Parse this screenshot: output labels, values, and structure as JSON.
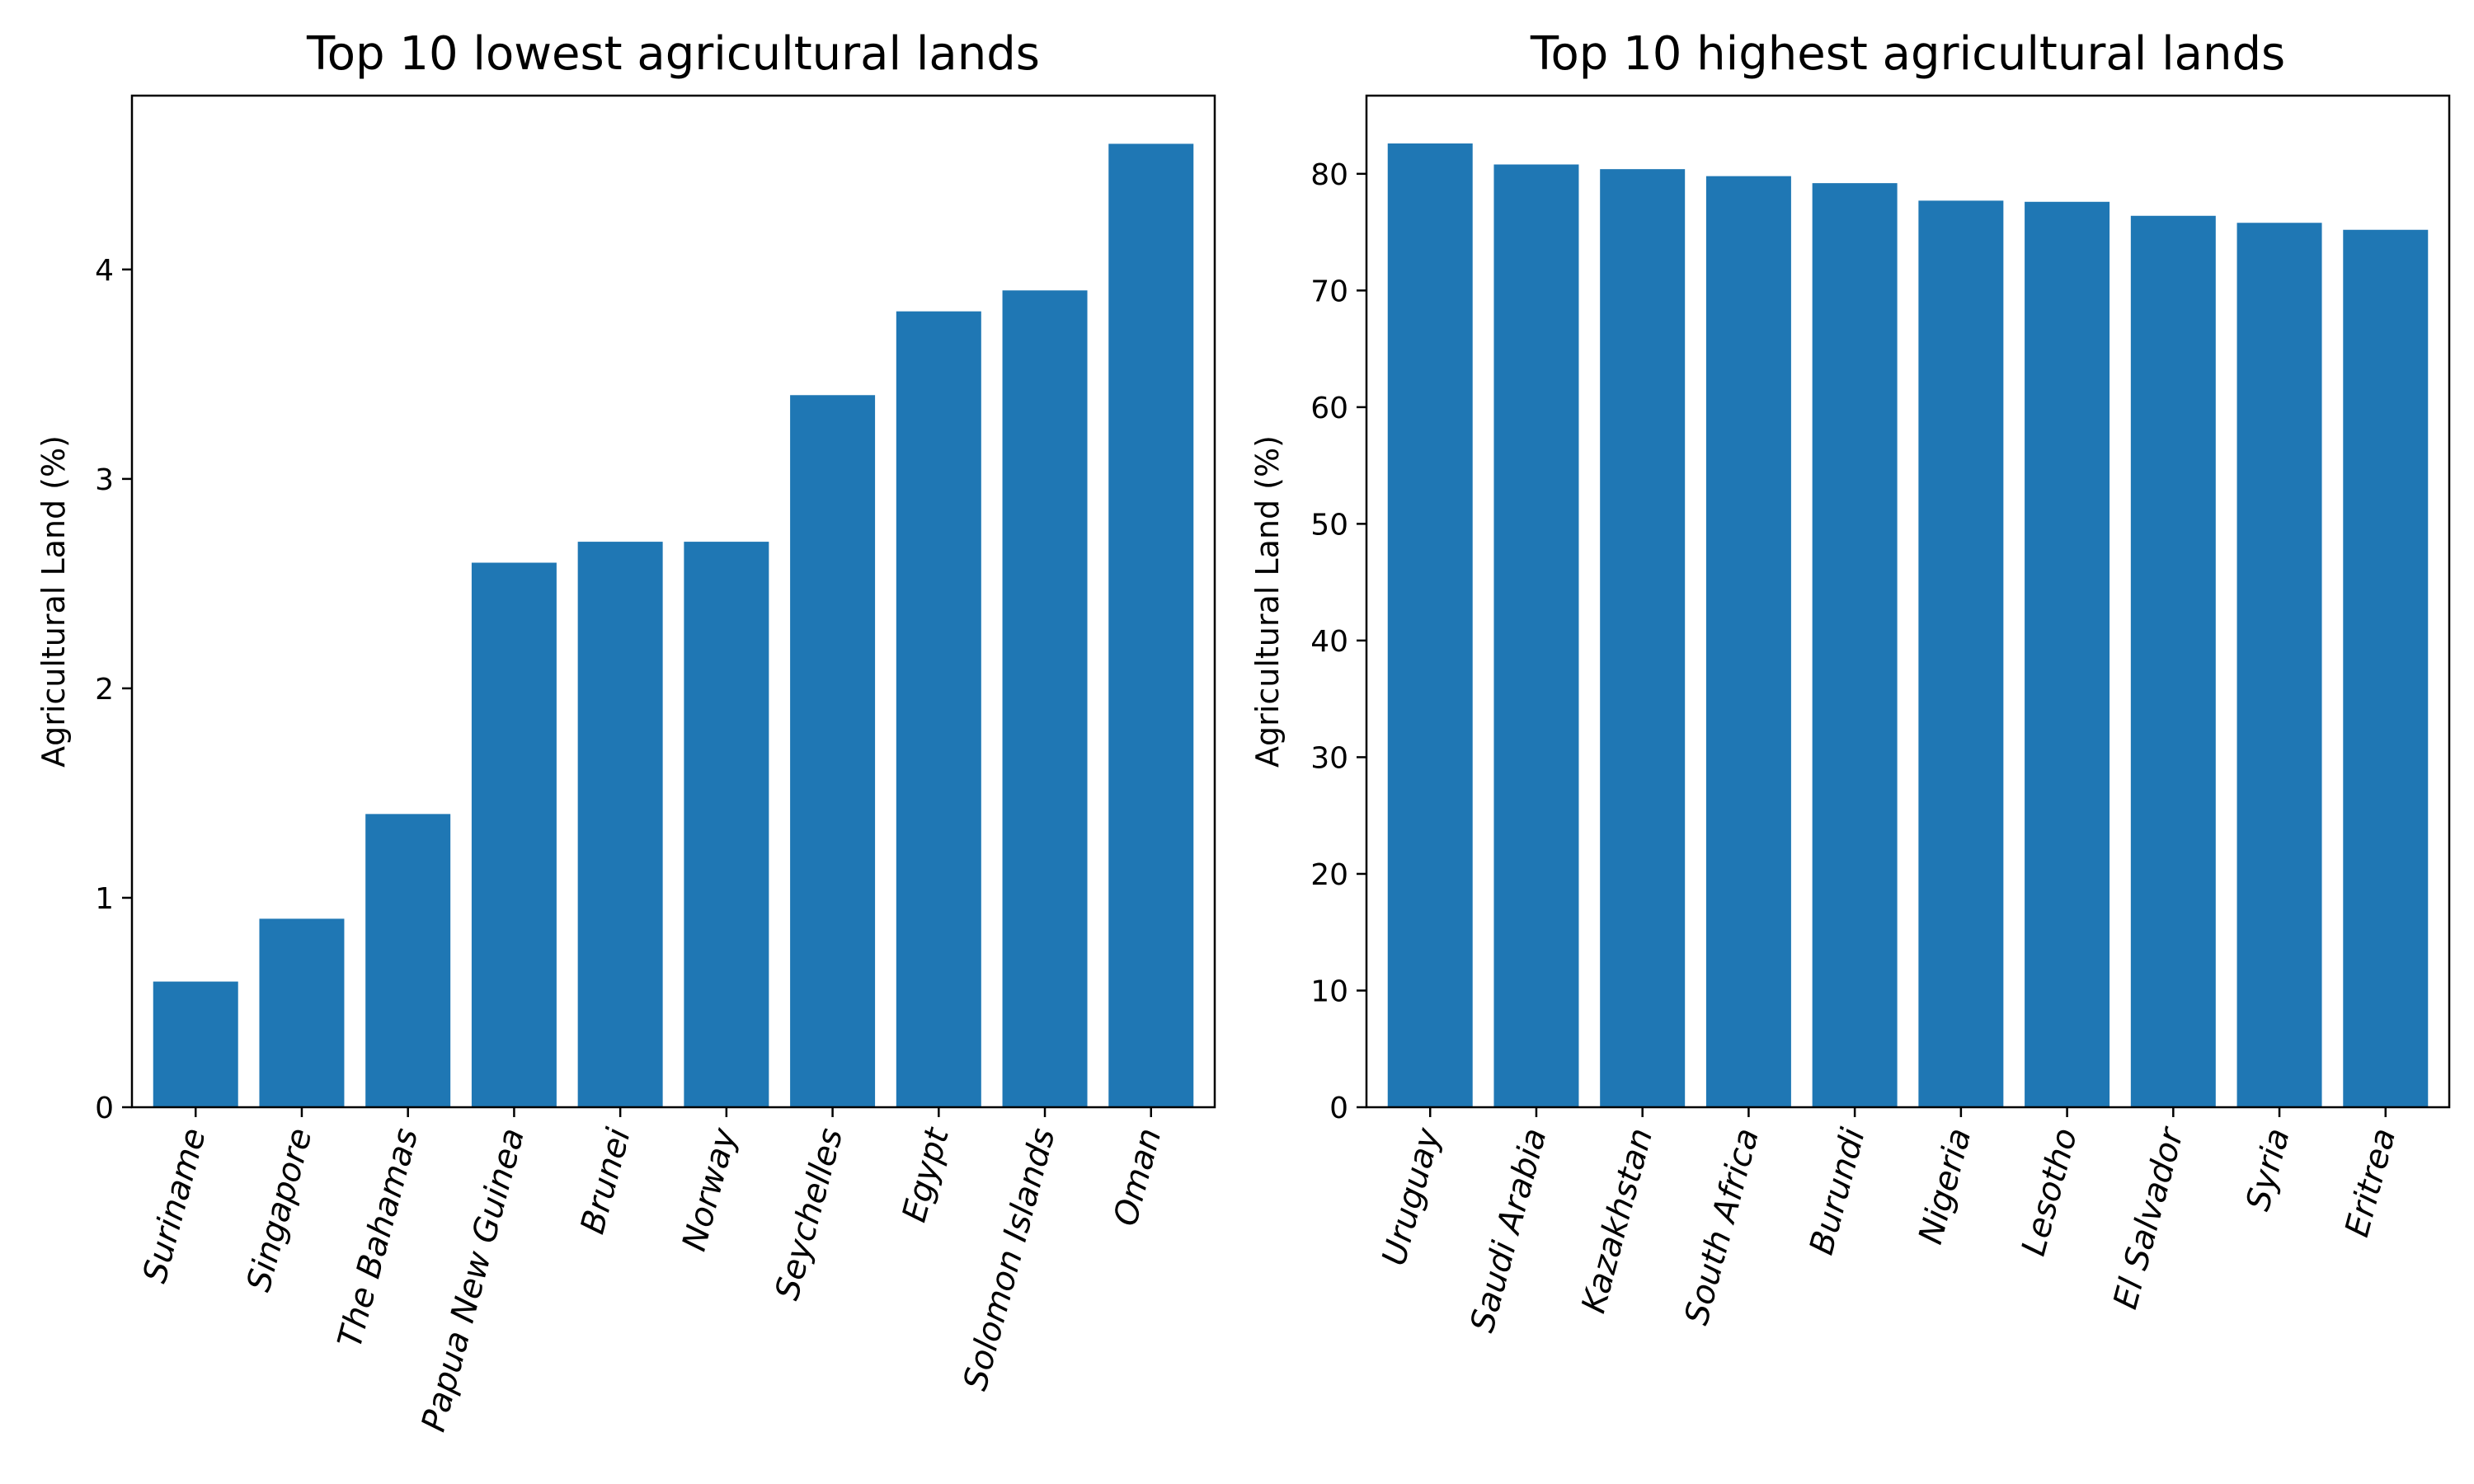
{
  "chart_data": [
    {
      "type": "bar",
      "title": "Top 10 lowest agricultural lands",
      "xlabel": "",
      "ylabel": "Agricultural Land (%)",
      "categories": [
        "Suriname",
        "Singapore",
        "The Bahamas",
        "Papua New Guinea",
        "Brunei",
        "Norway",
        "Seychelles",
        "Egypt",
        "Solomon Islands",
        "Oman"
      ],
      "values": [
        0.6,
        0.9,
        1.4,
        2.6,
        2.7,
        2.7,
        3.4,
        3.8,
        3.9,
        4.6
      ],
      "ylim": [
        0,
        4.83
      ],
      "yticks": [
        0,
        1,
        2,
        3,
        4
      ],
      "color": "#1f77b4",
      "grid": false
    },
    {
      "type": "bar",
      "title": "Top 10 highest agricultural lands",
      "xlabel": "",
      "ylabel": "Agricultural Land (%)",
      "categories": [
        "Uruguay",
        "Saudi Arabia",
        "Kazakhstan",
        "South Africa",
        "Burundi",
        "Nigeria",
        "Lesotho",
        "El Salvador",
        "Syria",
        "Eritrea"
      ],
      "values": [
        82.6,
        80.8,
        80.4,
        79.8,
        79.2,
        77.7,
        77.6,
        76.4,
        75.8,
        75.2
      ],
      "ylim": [
        0,
        86.7
      ],
      "yticks": [
        0,
        10,
        20,
        30,
        40,
        50,
        60,
        70,
        80
      ],
      "color": "#1f77b4",
      "grid": false
    }
  ]
}
